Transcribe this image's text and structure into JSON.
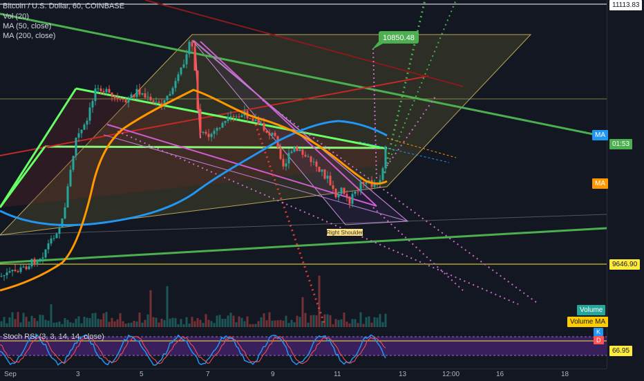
{
  "header": {
    "symbol_title": "Bitcoin / U.S. Dollar, 60, COINBASE",
    "indicators": [
      "Vol (20)",
      "MA (50, close)",
      "MA (200, close)"
    ]
  },
  "price_axis": {
    "labels": {
      "top_price": "11113.83",
      "ma_top": "MA",
      "countdown": "01:53",
      "ma_orange": "MA",
      "level_price": "9646.90",
      "volume": "Volume",
      "volume_ma": "Volume MA",
      "rsi_k": "K",
      "rsi_d": "D",
      "rsi_value": "66.95"
    }
  },
  "annotations": {
    "target_price": "10850.48",
    "pattern_label": "Right Shoulder"
  },
  "rsi": {
    "title": "Stoch RSI (3, 3, 14, 14, close)"
  },
  "time_axis": {
    "ticks": [
      "Sep",
      "3",
      "5",
      "7",
      "9",
      "11",
      "13",
      "12:00",
      "16",
      "18"
    ]
  },
  "colors": {
    "background": "#131722",
    "candle_up": "#26a69a",
    "candle_down": "#ef5350",
    "ma50": "#ff9800",
    "ma200": "#2196f3",
    "trend_green": "#4caf50",
    "target_green": "#4caf50",
    "price_line_yellow": "#ffeb3b",
    "pattern_purple": "#ab47bc"
  }
}
